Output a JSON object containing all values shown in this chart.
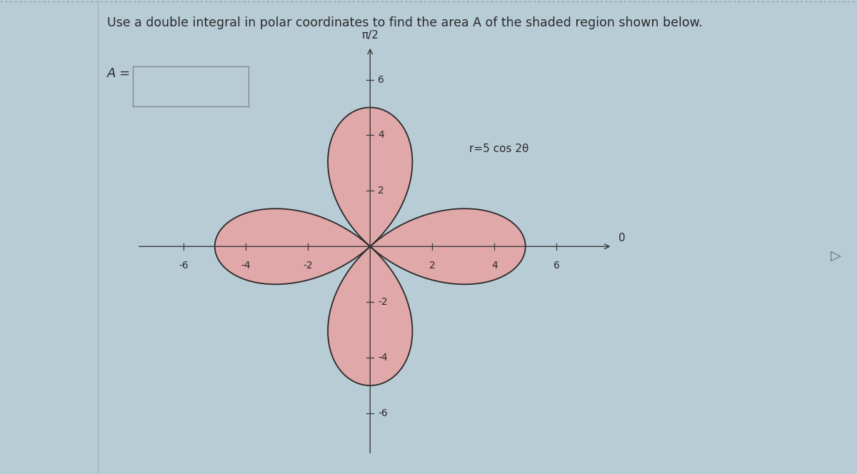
{
  "title": "Use a double integral in polar coordinates to find the area A of the shaded region shown below.",
  "answer_label": "A =",
  "equation_label": "r=5 cos 2θ",
  "pi_label": "π/2",
  "zero_label": "0",
  "xlim": [
    -7.5,
    8.5
  ],
  "ylim": [
    -7.5,
    7.5
  ],
  "xticks": [
    -6,
    -4,
    -2,
    2,
    4,
    6
  ],
  "yticks": [
    -6,
    -4,
    -2,
    2,
    4,
    6
  ],
  "petal_fill_color": "#e0a8a8",
  "petal_edge_color": "#2a2a2a",
  "background_color": "#b8ccd6",
  "left_panel_color": "#c8d8e0",
  "left_border_color": "#9aaab5",
  "axis_color": "#3a3a3a",
  "text_color": "#2a2a2a",
  "title_fontsize": 12.5,
  "label_fontsize": 11,
  "tick_fontsize": 10,
  "r_amplitude": 5,
  "box_border_color": "#888888"
}
